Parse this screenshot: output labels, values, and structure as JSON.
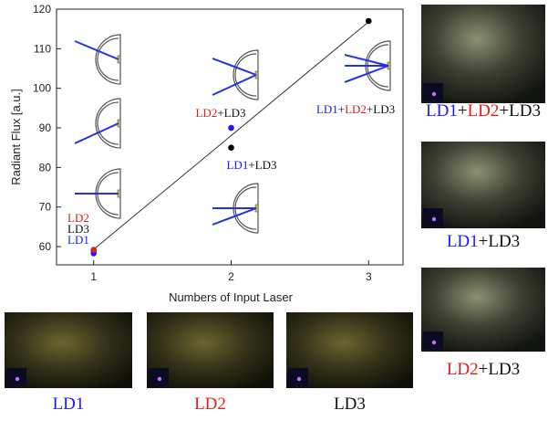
{
  "chart_data": {
    "type": "scatter",
    "x_label": "Numbers of Input Laser",
    "y_label": "Radiant Flux [a.u.]",
    "xlim": [
      0.73,
      3.25
    ],
    "ylim": [
      55.4,
      120
    ],
    "xticks": [
      1,
      2,
      3
    ],
    "yticks": [
      60,
      70,
      80,
      90,
      100,
      110,
      120
    ],
    "series": [
      {
        "color": "#000000",
        "x": [
          1,
          2,
          3
        ],
        "values": [
          59,
          85,
          117
        ]
      },
      {
        "color": "#1a1aff",
        "x": [
          1,
          2
        ],
        "values": [
          58.3,
          90
        ]
      },
      {
        "color": "#e0201b",
        "x": [
          1
        ],
        "values": [
          59.2
        ]
      }
    ],
    "fit": {
      "color": "#333333",
      "x": [
        1,
        3
      ],
      "values": [
        59.3,
        116.8
      ]
    },
    "annotations": [
      [
        {
          "text": "LD2",
          "color": "#e0201b"
        }
      ],
      [
        {
          "text": "LD3",
          "color": "#111111"
        }
      ],
      [
        {
          "text": "LD1",
          "color": "#1a1aff"
        }
      ],
      [
        {
          "text": "LD2",
          "color": "#e0201b"
        },
        {
          "text": "+LD3",
          "color": "#111111"
        }
      ],
      [
        {
          "text": "LD1",
          "color": "#1a1aff"
        },
        {
          "text": "+LD3",
          "color": "#111111"
        }
      ],
      [
        {
          "text": "LD1",
          "color": "#1a1aff"
        },
        {
          "text": "+",
          "color": "#111111"
        },
        {
          "text": "LD2",
          "color": "#e0201b"
        },
        {
          "text": "+LD3",
          "color": "#111111"
        }
      ]
    ]
  },
  "photos": [
    {
      "caption": [
        {
          "text": "LD1",
          "color": "#1a1aff"
        },
        {
          "text": "+",
          "color": "#111111"
        },
        {
          "text": "LD2",
          "color": "#e0201b"
        },
        {
          "text": "+LD3",
          "color": "#111111"
        }
      ]
    },
    {
      "caption": [
        {
          "text": "LD1",
          "color": "#1a1aff"
        },
        {
          "text": "+LD3",
          "color": "#111111"
        }
      ]
    },
    {
      "caption": [
        {
          "text": "LD2",
          "color": "#e0201b"
        },
        {
          "text": "+LD3",
          "color": "#111111"
        }
      ]
    },
    {
      "caption": [
        {
          "text": "LD1",
          "color": "#1a1aff"
        }
      ]
    },
    {
      "caption": [
        {
          "text": "LD2",
          "color": "#e0201b"
        }
      ]
    },
    {
      "caption": [
        {
          "text": "LD3",
          "color": "#111111"
        }
      ]
    }
  ]
}
